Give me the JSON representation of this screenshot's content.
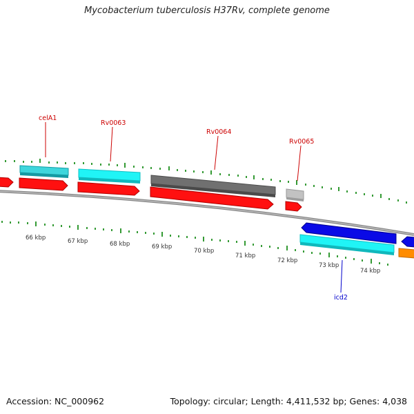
{
  "title": "Mycobacterium tuberculosis H37Rv, complete genome",
  "footer": {
    "accession": "Accession: NC_000962",
    "summary": "Topology: circular; Length: 4,411,532 bp; Genes: 4,038"
  },
  "kbp_labels": [
    "66 kbp",
    "67 kbp",
    "68 kbp",
    "69 kbp",
    "70 kbp",
    "71 kbp",
    "72 kbp",
    "73 kbp",
    "74 kbp"
  ],
  "gene_labels": [
    {
      "text": "celA1",
      "strand": "forward"
    },
    {
      "text": "Rv0063",
      "strand": "forward"
    },
    {
      "text": "Rv0064",
      "strand": "forward"
    },
    {
      "text": "Rv0065",
      "strand": "forward"
    },
    {
      "text": "icd2",
      "strand": "reverse"
    }
  ],
  "colors": {
    "cds": "#ff0000",
    "gene_cyan": "#00ffff",
    "gene_teal": "#22c4cc",
    "gene_gray": "#666666",
    "gene_light_gray": "#bbbbbb",
    "gene_blue": "#0000ee",
    "gene_orange": "#ff8c00",
    "backbone": "#888888",
    "ticks": "#008000",
    "forward_label": "#cc0000",
    "reverse_label": "#0000cc"
  }
}
